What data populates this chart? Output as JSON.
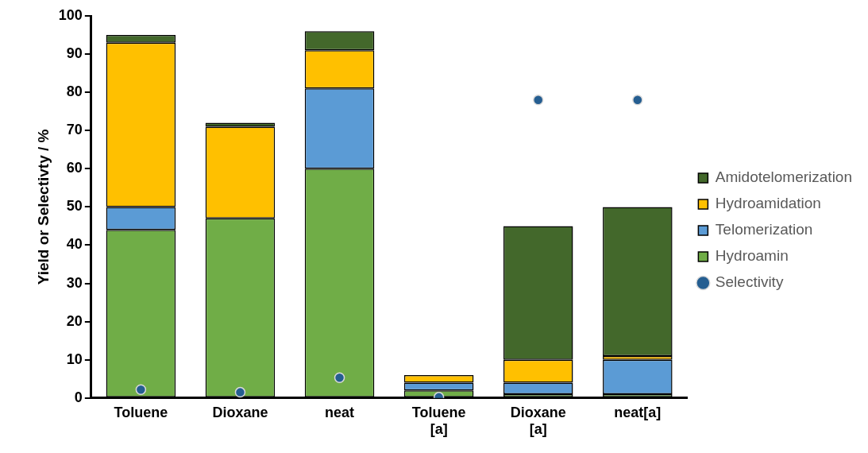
{
  "chart_data": {
    "type": "bar",
    "stacked": true,
    "ylabel": "Yield or Selectivty / %",
    "categories": [
      "Toluene",
      "Dioxane",
      "neat",
      "Toluene [a]",
      "Dioxane [a]",
      "neat[a]"
    ],
    "ylim": [
      0,
      100
    ],
    "yticks": [
      0,
      10,
      20,
      30,
      40,
      50,
      60,
      70,
      80,
      90,
      100
    ],
    "grid": false,
    "legend": "right",
    "marker": "circle",
    "series": [
      {
        "name": "Hydroamin",
        "color": "#70ad47",
        "values": [
          44,
          47,
          60,
          2,
          1,
          1
        ]
      },
      {
        "name": "Telomerization",
        "color": "#5b9bd5",
        "values": [
          6,
          0,
          21,
          2,
          3,
          9
        ]
      },
      {
        "name": "Hydroamidation",
        "color": "#ffc000",
        "values": [
          43,
          24,
          10,
          2,
          6,
          1
        ]
      },
      {
        "name": "Amidotelomerization",
        "color": "#43682b",
        "values": [
          2,
          1,
          5,
          0,
          35,
          39
        ]
      },
      {
        "name": "Selectivity",
        "type": "scatter",
        "color": "#255e91",
        "x": [
          "Toluene",
          "Dioxane",
          "neat",
          "Toluene [a]",
          "Dioxane [a]",
          "neat[a]"
        ],
        "values": [
          2.2,
          1.5,
          5.3,
          0.2,
          78,
          78
        ]
      }
    ]
  }
}
